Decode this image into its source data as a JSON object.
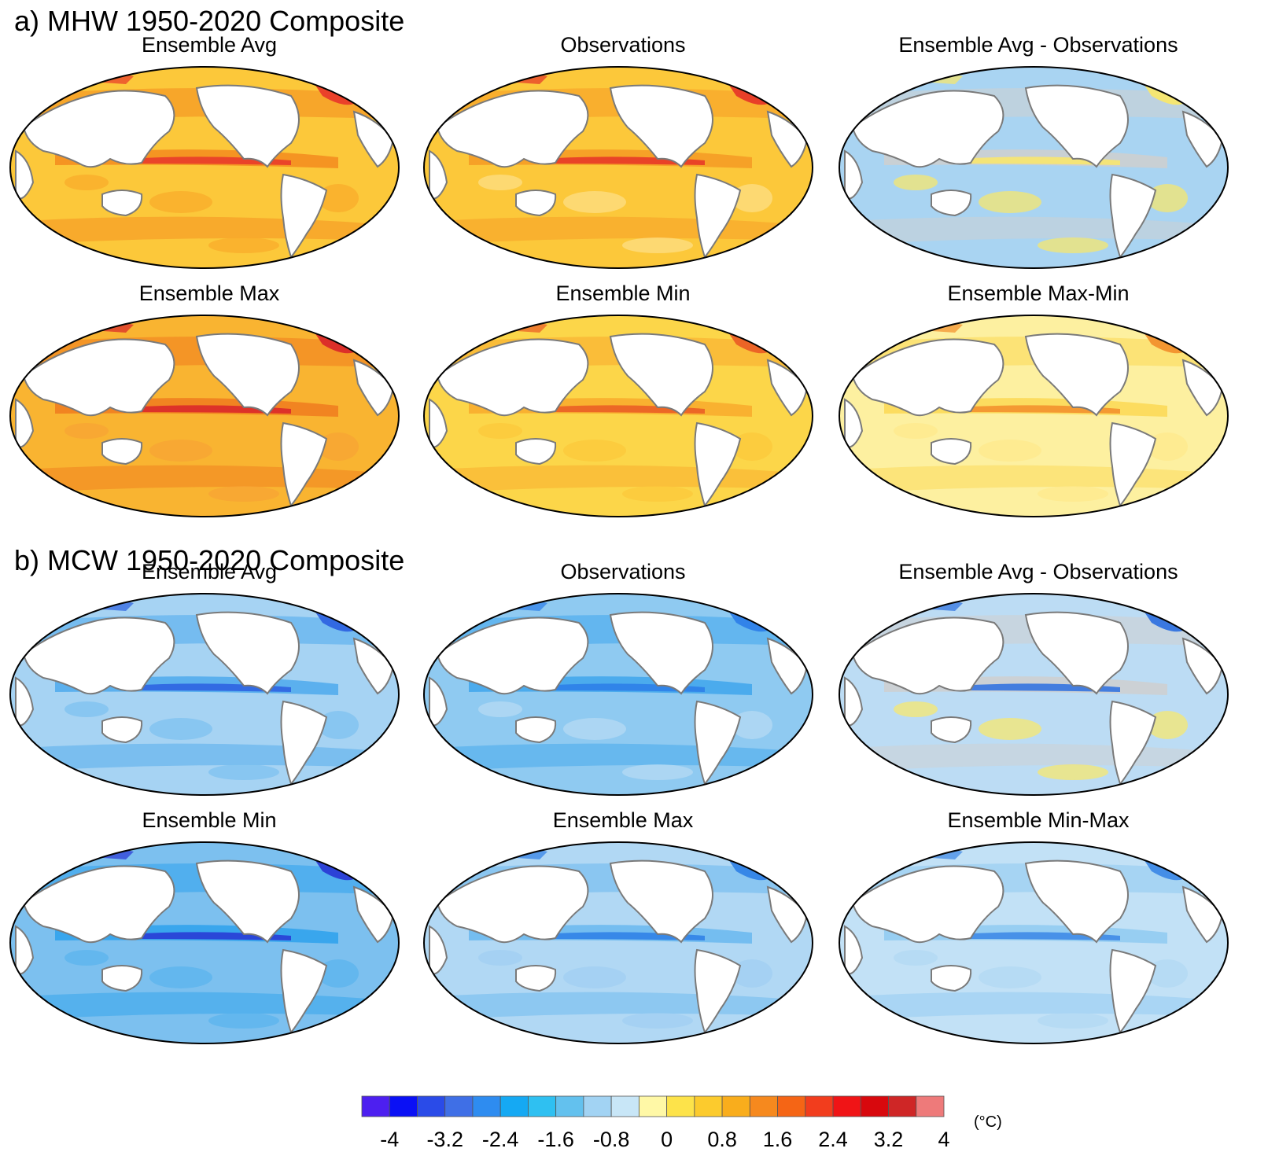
{
  "figure": {
    "sections": [
      {
        "title": "a) MHW 1950-2020 Composite",
        "panels": [
          {
            "title": "Ensemble Avg",
            "palette": "warm",
            "base": "#fcc83a",
            "band": "#f38b1e",
            "hot": "#e8362a",
            "spots": "#f9a92a"
          },
          {
            "title": "Observations",
            "palette": "warm",
            "base": "#fcc83a",
            "band": "#f59a24",
            "hot": "#e63328",
            "spots": "#fde08a"
          },
          {
            "title": "Ensemble Avg - Observations",
            "palette": "diff",
            "base": "#a9d4f2",
            "band": "#cfcfcf",
            "hot": "#fbe867",
            "spots": "#fbe867"
          },
          {
            "title": "Ensemble Max",
            "palette": "warm",
            "base": "#f9b431",
            "band": "#f07b1e",
            "hot": "#d9232a",
            "spots": "#f8a234"
          },
          {
            "title": "Ensemble Min",
            "palette": "warm",
            "base": "#fcd649",
            "band": "#f8aa2b",
            "hot": "#ea5a25",
            "spots": "#fcc83a"
          },
          {
            "title": "Ensemble Max-Min",
            "palette": "warm",
            "base": "#fdf0a0",
            "band": "#fcd853",
            "hot": "#f28d2a",
            "spots": "#fde88a"
          }
        ]
      },
      {
        "title": "b) MCW 1950-2020 Composite",
        "panels": [
          {
            "title": "Ensemble Avg",
            "palette": "cool",
            "base": "#a6d3f3",
            "band": "#4da9ec",
            "hot": "#2b5fe0",
            "spots": "#7cc0ef"
          },
          {
            "title": "Observations",
            "palette": "cool",
            "base": "#8fcaf1",
            "band": "#3fa6ec",
            "hot": "#2b7de8",
            "spots": "#b8dcf4"
          },
          {
            "title": "Ensemble Avg - Observations",
            "palette": "diff",
            "base": "#bcdcf4",
            "band": "#cfcfcf",
            "hot": "#2a6ee0",
            "spots": "#fbe867"
          },
          {
            "title": "Ensemble Min",
            "palette": "cool",
            "base": "#7cc0ef",
            "band": "#2ea1ec",
            "hot": "#2836d4",
            "spots": "#59b3ee"
          },
          {
            "title": "Ensemble Max",
            "palette": "cool",
            "base": "#b1d8f4",
            "band": "#6ab8ee",
            "hot": "#2d7fe6",
            "spots": "#a0cff2"
          },
          {
            "title": "Ensemble Min-Max",
            "palette": "cool",
            "base": "#c2e1f6",
            "band": "#8fcaf1",
            "hot": "#3a86e6",
            "spots": "#b1d8f4"
          }
        ]
      }
    ],
    "colorbar": {
      "colors": [
        "#4d1ff0",
        "#0a10f5",
        "#2a4be8",
        "#3f6fe6",
        "#2e8cf0",
        "#15a9f3",
        "#2fc0f1",
        "#63c1ee",
        "#a2d3f3",
        "#c8e6f7",
        "#fff8a6",
        "#fde34a",
        "#fccb2d",
        "#f9ad1c",
        "#f6891e",
        "#f56515",
        "#f23d1d",
        "#f01416",
        "#d8080d",
        "#cf2626",
        "#ee7a7a"
      ],
      "tick_labels": [
        "-4",
        "-3.2",
        "-2.4",
        "-1.6",
        "-0.8",
        "0",
        "0.8",
        "1.6",
        "2.4",
        "3.2",
        "4"
      ],
      "unit": "(°C)"
    }
  }
}
